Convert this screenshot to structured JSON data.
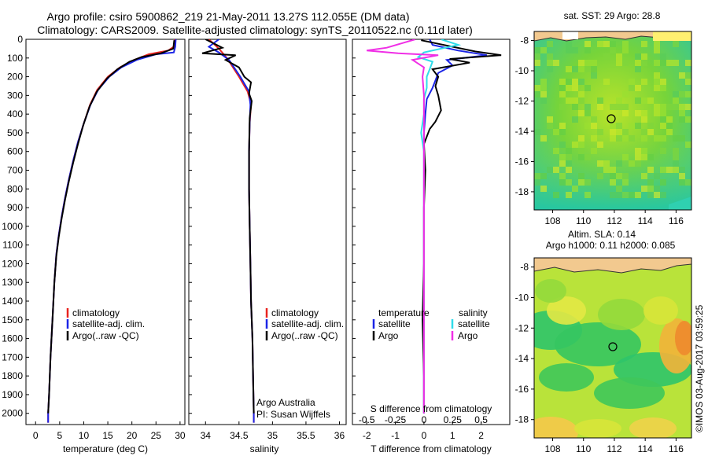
{
  "header": {
    "line1": "Argo profile: csiro 5900862_219 21-May-2011 13.27S 112.055E (DM data)",
    "line2": "Climatology: CARS2009. Satellite-adjusted climatology: synTS_20110522.nc (0.11d later)"
  },
  "colors": {
    "climatology": "#e8231f",
    "satellite": "#1b24e6",
    "argo": "#000000",
    "sat_salinity": "#2fdcea",
    "argo_salinity": "#f02ee6"
  },
  "chart_data": [
    {
      "type": "line",
      "panel": "temperature",
      "xlabel": "temperature (deg C)",
      "xlim": [
        -2,
        31
      ],
      "xticks": [
        0,
        5,
        10,
        15,
        20,
        25,
        30
      ],
      "ylim": [
        2060,
        0
      ],
      "yticks": [
        0,
        100,
        200,
        300,
        400,
        500,
        600,
        700,
        800,
        900,
        1000,
        1100,
        1200,
        1300,
        1400,
        1500,
        1600,
        1700,
        1800,
        1900,
        2000
      ],
      "legend": [
        "climatology",
        "satellite-adj. clim.",
        "Argo(..raw -QC)"
      ],
      "series": [
        {
          "name": "climatology",
          "color": "#e8231f",
          "values": [
            [
              28.9,
              0
            ],
            [
              28.7,
              40
            ],
            [
              27.5,
              60
            ],
            [
              23.5,
              80
            ],
            [
              20.5,
              110
            ],
            [
              17.5,
              150
            ],
            [
              15,
              200
            ],
            [
              12.8,
              270
            ],
            [
              11.3,
              350
            ],
            [
              10,
              450
            ],
            [
              8.8,
              550
            ],
            [
              7.8,
              650
            ],
            [
              6.9,
              750
            ],
            [
              6.1,
              850
            ],
            [
              5.4,
              950
            ],
            [
              4.8,
              1050
            ],
            [
              4.3,
              1150
            ],
            [
              3.9,
              1300
            ],
            [
              3.5,
              1500
            ],
            [
              3.1,
              1700
            ],
            [
              2.8,
              1900
            ],
            [
              2.6,
              2000
            ],
            [
              2.6,
              2050
            ]
          ]
        },
        {
          "name": "satellite-adj. clim.",
          "color": "#1b24e6",
          "values": [
            [
              29.1,
              0
            ],
            [
              29,
              40
            ],
            [
              28.7,
              70
            ],
            [
              25,
              80
            ],
            [
              21,
              110
            ],
            [
              17.8,
              150
            ],
            [
              15.3,
              200
            ],
            [
              13,
              270
            ],
            [
              11.4,
              350
            ],
            [
              10,
              450
            ],
            [
              8.8,
              550
            ],
            [
              7.8,
              650
            ],
            [
              6.9,
              750
            ],
            [
              6.1,
              850
            ],
            [
              5.4,
              950
            ],
            [
              4.8,
              1050
            ],
            [
              4.3,
              1150
            ],
            [
              3.9,
              1300
            ],
            [
              3.5,
              1500
            ],
            [
              3.1,
              1700
            ],
            [
              2.8,
              1900
            ],
            [
              2.6,
              2000
            ],
            [
              2.6,
              2050
            ]
          ]
        },
        {
          "name": "Argo(..raw -QC)",
          "color": "#000000",
          "values": [
            [
              28.8,
              5
            ],
            [
              28.6,
              50
            ],
            [
              26,
              75
            ],
            [
              22,
              95
            ],
            [
              19.5,
              120
            ],
            [
              17,
              160
            ],
            [
              14.8,
              210
            ],
            [
              12.7,
              280
            ],
            [
              11.2,
              360
            ],
            [
              9.9,
              460
            ],
            [
              8.8,
              560
            ],
            [
              7.8,
              660
            ],
            [
              6.9,
              760
            ],
            [
              6.1,
              860
            ],
            [
              5.4,
              960
            ],
            [
              4.8,
              1060
            ],
            [
              4.3,
              1160
            ],
            [
              3.9,
              1300
            ],
            [
              3.5,
              1500
            ],
            [
              3.1,
              1700
            ],
            [
              2.8,
              1900
            ],
            [
              2.6,
              2000
            ]
          ]
        }
      ]
    },
    {
      "type": "line",
      "panel": "salinity",
      "xlabel": "salinity",
      "xlim": [
        33.75,
        36.1
      ],
      "xticks": [
        34,
        34.5,
        35,
        35.5,
        36
      ],
      "ylim": [
        2060,
        0
      ],
      "legend": [
        "climatology",
        "satellite-adj. clim.",
        "Argo(..raw -QC)"
      ],
      "annotation": [
        "Argo Australia",
        "PI: Susan Wijffels"
      ],
      "series": [
        {
          "name": "climatology",
          "color": "#e8231f",
          "values": [
            [
              34.05,
              0
            ],
            [
              34.2,
              50
            ],
            [
              34.32,
              100
            ],
            [
              34.5,
              200
            ],
            [
              34.63,
              280
            ],
            [
              34.68,
              350
            ],
            [
              34.66,
              450
            ],
            [
              34.65,
              600
            ],
            [
              34.65,
              800
            ],
            [
              34.66,
              1000
            ],
            [
              34.67,
              1200
            ],
            [
              34.68,
              1400
            ],
            [
              34.7,
              1600
            ],
            [
              34.71,
              1800
            ],
            [
              34.72,
              2000
            ],
            [
              34.72,
              2050
            ]
          ]
        },
        {
          "name": "satellite-adj. clim.",
          "color": "#1b24e6",
          "values": [
            [
              34.2,
              0
            ],
            [
              34.05,
              40
            ],
            [
              34.2,
              70
            ],
            [
              34.35,
              110
            ],
            [
              34.52,
              200
            ],
            [
              34.65,
              280
            ],
            [
              34.67,
              350
            ],
            [
              34.66,
              450
            ],
            [
              34.65,
              600
            ],
            [
              34.65,
              800
            ],
            [
              34.66,
              1000
            ],
            [
              34.67,
              1200
            ],
            [
              34.68,
              1400
            ],
            [
              34.7,
              1600
            ],
            [
              34.71,
              1800
            ],
            [
              34.72,
              2000
            ],
            [
              34.72,
              2050
            ]
          ]
        },
        {
          "name": "Argo(..raw -QC)",
          "color": "#000000",
          "values": [
            [
              34.0,
              0
            ],
            [
              34.25,
              45
            ],
            [
              33.95,
              75
            ],
            [
              34.45,
              85
            ],
            [
              34.3,
              110
            ],
            [
              34.5,
              150
            ],
            [
              34.58,
              200
            ],
            [
              34.68,
              230
            ],
            [
              34.65,
              290
            ],
            [
              34.69,
              330
            ],
            [
              34.66,
              420
            ],
            [
              34.65,
              600
            ],
            [
              34.65,
              800
            ],
            [
              34.66,
              1000
            ],
            [
              34.67,
              1200
            ],
            [
              34.68,
              1400
            ],
            [
              34.7,
              1600
            ],
            [
              34.71,
              1800
            ],
            [
              34.72,
              2000
            ]
          ]
        }
      ]
    },
    {
      "type": "line",
      "panel": "difference",
      "xlabel_top": "S difference from climatology",
      "xlabel": "T difference from climatology",
      "xlim": [
        -2.5,
        3.0
      ],
      "xticks_bottom": [
        -2,
        -1,
        0,
        1,
        2
      ],
      "xticks_top_labels": [
        "-0.5",
        "-0.25",
        "0",
        "0.25",
        "0.5"
      ],
      "ylim": [
        2060,
        0
      ],
      "legend_temperature": {
        "title": "temperature",
        "items": [
          "satellite",
          "Argo"
        ]
      },
      "legend_salinity": {
        "title": "salinity",
        "items": [
          "satellite",
          "Argo"
        ]
      },
      "series": [
        {
          "name": "temperature satellite",
          "color": "#1b24e6",
          "values": [
            [
              0.2,
              0
            ],
            [
              0.3,
              30
            ],
            [
              1.2,
              60
            ],
            [
              2.2,
              85
            ],
            [
              0.8,
              110
            ],
            [
              1.0,
              140
            ],
            [
              0.5,
              180
            ],
            [
              0.4,
              220
            ],
            [
              0.3,
              260
            ],
            [
              0.1,
              320
            ],
            [
              0.05,
              400
            ],
            [
              0,
              500
            ],
            [
              0,
              800
            ],
            [
              0,
              1200
            ],
            [
              0,
              1600
            ],
            [
              0,
              2000
            ]
          ]
        },
        {
          "name": "temperature Argo",
          "color": "#000000",
          "values": [
            [
              -0.1,
              5
            ],
            [
              1.8,
              65
            ],
            [
              2.7,
              85
            ],
            [
              0.9,
              105
            ],
            [
              1.6,
              125
            ],
            [
              0.3,
              160
            ],
            [
              0.5,
              200
            ],
            [
              0.4,
              250
            ],
            [
              0.5,
              300
            ],
            [
              0.6,
              380
            ],
            [
              0.4,
              440
            ],
            [
              0.2,
              480
            ],
            [
              0,
              560
            ],
            [
              0.05,
              700
            ],
            [
              0,
              900
            ],
            [
              0,
              1200
            ],
            [
              -0.05,
              1500
            ],
            [
              0,
              1800
            ],
            [
              0,
              2000
            ]
          ]
        },
        {
          "name": "salinity satellite",
          "color": "#2fdcea",
          "values": [
            [
              0.6,
              0
            ],
            [
              1.2,
              30
            ],
            [
              0,
              70
            ],
            [
              -0.2,
              95
            ],
            [
              0.3,
              120
            ],
            [
              0.2,
              160
            ],
            [
              0.1,
              200
            ],
            [
              0.1,
              260
            ],
            [
              0,
              320
            ],
            [
              0,
              400
            ],
            [
              -0.1,
              500
            ],
            [
              0,
              600
            ],
            [
              0,
              800
            ],
            [
              0,
              1200
            ],
            [
              0,
              2000
            ]
          ]
        },
        {
          "name": "salinity Argo",
          "color": "#f02ee6",
          "values": [
            [
              -0.3,
              0
            ],
            [
              -1.3,
              45
            ],
            [
              -2.0,
              60
            ],
            [
              -0.9,
              75
            ],
            [
              0.5,
              85
            ],
            [
              -0.4,
              110
            ],
            [
              0,
              150
            ],
            [
              -0.05,
              200
            ],
            [
              0,
              300
            ],
            [
              0,
              500
            ],
            [
              0,
              800
            ],
            [
              0,
              1200
            ],
            [
              0,
              1600
            ],
            [
              0,
              2000
            ]
          ]
        }
      ]
    }
  ],
  "maps": [
    {
      "title": "sat. SST: 29 Argo: 28.8",
      "xticks": [
        "108",
        "110",
        "112",
        "114",
        "116"
      ],
      "yticks": [
        "-8",
        "-10",
        "-12",
        "-14",
        "-16",
        "-18"
      ],
      "marker": [
        112.05,
        -13.27
      ]
    },
    {
      "title_line1": "Altim. SLA: 0.14",
      "title_line2": "Argo h1000: 0.11 h2000: 0.085",
      "xticks": [
        "108",
        "110",
        "112",
        "114",
        "116"
      ],
      "yticks": [
        "-8",
        "-10",
        "-12",
        "-14",
        "-16",
        "-18"
      ],
      "marker": [
        112.05,
        -13.27
      ]
    }
  ],
  "credit": "©IMOS 03-Aug-2017 03:59:25"
}
